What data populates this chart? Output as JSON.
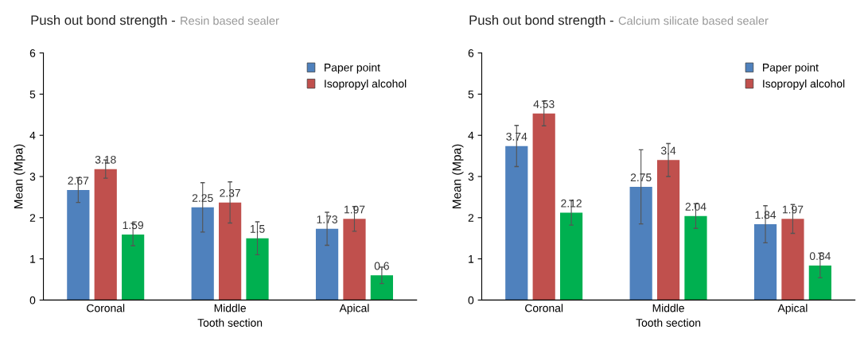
{
  "chart_data": [
    {
      "type": "bar",
      "title": "Push out bond strength -",
      "subtitle": "Resin based sealer",
      "xlabel": "Tooth section",
      "ylabel": "Mean (Mpa)",
      "categories": [
        "Coronal",
        "Middle",
        "Apical"
      ],
      "ylim": [
        0,
        6
      ],
      "yticks": [
        0,
        1,
        2,
        3,
        4,
        5,
        6
      ],
      "grid": false,
      "legend": "top right",
      "data_labels": true,
      "series": [
        {
          "name": "Paper point",
          "color": "#4f81bd",
          "values": [
            2.67,
            2.25,
            1.73
          ],
          "errors": [
            0.3,
            0.6,
            0.4
          ]
        },
        {
          "name": "Isopropyl alcohol",
          "color": "#c0504d",
          "values": [
            3.18,
            2.37,
            1.97
          ],
          "errors": [
            0.22,
            0.5,
            0.3
          ]
        },
        {
          "color": "#00b050",
          "values": [
            1.59,
            1.5,
            0.6
          ],
          "errors": [
            0.27,
            0.4,
            0.2
          ]
        }
      ]
    },
    {
      "type": "bar",
      "title": "Push out bond strength -",
      "subtitle": "Calcium silicate based sealer",
      "xlabel": "Tooth section",
      "ylabel": "Mean (Mpa)",
      "categories": [
        "Coronal",
        "Middle",
        "Apical"
      ],
      "ylim": [
        0,
        6
      ],
      "yticks": [
        0,
        1,
        2,
        3,
        4,
        5,
        6
      ],
      "grid": false,
      "legend": "top right",
      "data_labels": true,
      "series": [
        {
          "name": "Paper point",
          "color": "#4f81bd",
          "values": [
            3.74,
            2.75,
            1.84
          ],
          "errors": [
            0.5,
            0.9,
            0.45
          ]
        },
        {
          "name": "Isopropyl alcohol",
          "color": "#c0504d",
          "values": [
            4.53,
            3.4,
            1.97
          ],
          "errors": [
            0.3,
            0.4,
            0.35
          ]
        },
        {
          "color": "#00b050",
          "values": [
            2.12,
            2.04,
            0.84
          ],
          "errors": [
            0.3,
            0.3,
            0.3
          ]
        }
      ]
    }
  ]
}
